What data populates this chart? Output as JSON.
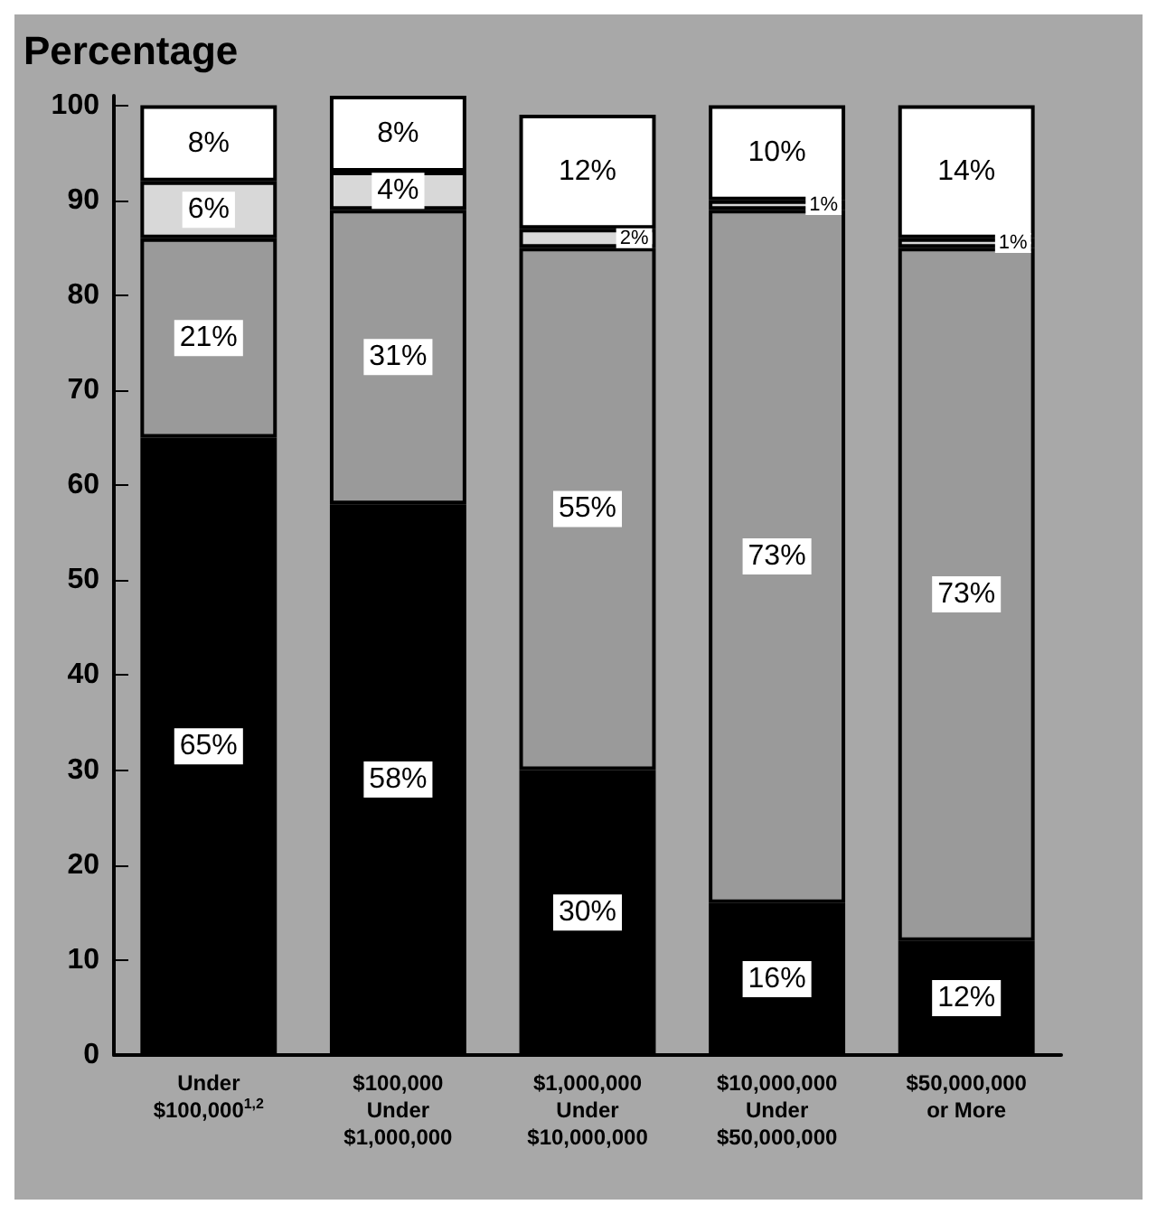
{
  "chart_data": {
    "type": "bar",
    "stacked": true,
    "ylabel": "Percentage",
    "categories": [
      "Under\n$100,000$^{1,2}$",
      "$100,000\nUnder\n$1,000,000",
      "$1,000,000\nUnder\n$10,000,000",
      "$10,000,000\nUnder\n$50,000,000",
      "$50,000,000\nor More"
    ],
    "series": [
      {
        "color": "#000000",
        "values": [
          65,
          58,
          30,
          16,
          12
        ],
        "value_labels": [
          "65%",
          "58%",
          "30%",
          "16%",
          "12%"
        ]
      },
      {
        "color": "#9a9a9a",
        "values": [
          21,
          31,
          55,
          73,
          73
        ],
        "value_labels": [
          "21%",
          "31%",
          "55%",
          "73%",
          "73%"
        ]
      },
      {
        "color": "#d8d8d8",
        "values": [
          6,
          4,
          2,
          1,
          1
        ],
        "value_labels": [
          "6%",
          "4%",
          "2%",
          "1%",
          "1%"
        ]
      },
      {
        "color": "#ffffff",
        "values": [
          8,
          8,
          12,
          10,
          14
        ],
        "value_labels": [
          "8%",
          "8%",
          "12%",
          "10%",
          "14%"
        ]
      }
    ],
    "ylim": [
      0,
      101
    ],
    "yticks": [
      0,
      10,
      20,
      30,
      40,
      50,
      60,
      70,
      80,
      90,
      100
    ],
    "grid": false
  }
}
